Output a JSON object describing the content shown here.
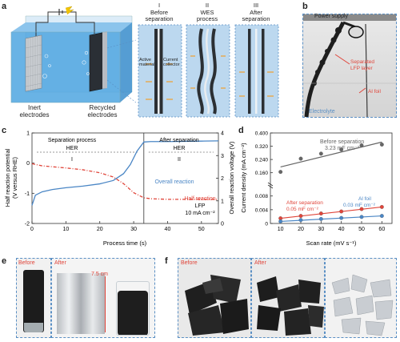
{
  "panel_a": {
    "label": "a",
    "inert_caption_1": "Inert",
    "inert_caption_2": "electrodes",
    "recycled_caption_1": "Recycled",
    "recycled_caption_2": "electrodes",
    "stage1_num": "I",
    "stage1_title_1": "Before",
    "stage1_title_2": "separation",
    "stage2_num": "II",
    "stage2_title_1": "WES",
    "stage2_title_2": "process",
    "stage3_num": "III",
    "stage3_title_1": "After",
    "stage3_title_2": "separation",
    "active_label_1": "Active",
    "active_label_2": "material",
    "collector_label_1": "Current",
    "collector_label_2": "collector"
  },
  "panel_b": {
    "label": "b",
    "power_supply": "Power supply",
    "lfp_1": "Separated",
    "lfp_2": "LFP layer",
    "al_foil": "Al foil",
    "electrolyte": "Electrolyte"
  },
  "panel_c": {
    "label": "c",
    "sep_process": "Separation process",
    "sep_her": "HER",
    "after_sep": "After separation",
    "after_her": "HER",
    "region1": "I",
    "region2": "II",
    "overall_label": "Overall reaction",
    "half_label": "Half reaction",
    "lfp_label": "LFP",
    "current_label": "10 mA cm⁻²",
    "ylabel_left_1": "Half reaction potential",
    "ylabel_left_2": "(V versus RHE)",
    "ylabel_right": "Overall reaction voltage (V)",
    "xlabel": "Process time (s)"
  },
  "panel_d": {
    "label": "d",
    "before_1": "Before separation",
    "before_2": "3.23 mF cm⁻²",
    "after_1": "After separation",
    "after_2": "0.05 mF cm⁻²",
    "al_1": "Al foil",
    "al_2": "0.03 mF cm⁻²",
    "ylabel": "Current density (mA cm⁻²)",
    "xlabel": "Scan rate (mV s⁻¹)"
  },
  "panel_e": {
    "label": "e",
    "before": "Before",
    "after": "After",
    "size": "7.5 cm"
  },
  "panel_f": {
    "label": "f",
    "before": "Before",
    "after": "After"
  },
  "colors": {
    "overall": "#4a86c5",
    "half": "#e0453a",
    "before_sep": "#666666",
    "after_sep": "#e0453a",
    "al_foil": "#4a86c5",
    "accent_dash": "#5a8fc4",
    "stage_bg": "#b9d6ee"
  },
  "chart_data": [
    {
      "type": "line",
      "xlim": [
        0,
        55
      ],
      "xticks": [
        0,
        10,
        20,
        30,
        40,
        50
      ],
      "ylim_left": [
        -2,
        1
      ],
      "yticks_left": [
        -2,
        -1,
        0,
        1
      ],
      "ylim_right": [
        0,
        4
      ],
      "yticks_right": [
        0,
        1,
        2,
        3,
        4
      ],
      "separator_x": 33,
      "series": [
        {
          "name": "Overall reaction",
          "axis": "right",
          "x": [
            0,
            1,
            3,
            6,
            10,
            15,
            20,
            24,
            27,
            29,
            31,
            33,
            35,
            40,
            45,
            50,
            55
          ],
          "y": [
            0.8,
            1.25,
            1.4,
            1.5,
            1.58,
            1.65,
            1.75,
            1.9,
            2.2,
            2.6,
            3.2,
            3.6,
            3.62,
            3.62,
            3.63,
            3.64,
            3.65
          ]
        },
        {
          "name": "Half reaction",
          "axis": "left",
          "x": [
            0,
            3,
            6,
            10,
            15,
            20,
            24,
            27,
            30,
            33,
            35,
            40,
            45,
            50,
            55
          ],
          "y": [
            -0.02,
            -0.09,
            -0.12,
            -0.16,
            -0.22,
            -0.32,
            -0.46,
            -0.68,
            -0.98,
            -1.15,
            -1.18,
            -1.2,
            -1.2,
            -1.2,
            -1.2
          ]
        }
      ]
    },
    {
      "type": "scatter",
      "x": [
        10,
        20,
        30,
        40,
        50,
        60
      ],
      "xlim": [
        5,
        65
      ],
      "xticks": [
        10,
        20,
        30,
        40,
        50,
        60
      ],
      "upper_ylim": [
        0.11,
        0.4
      ],
      "upper_yticks": [
        0.16,
        0.24,
        0.32,
        0.4
      ],
      "lower_ylim": [
        0,
        0.0105
      ],
      "lower_yticks": [
        0,
        0.004,
        0.008
      ],
      "series": [
        {
          "name": "Before separation",
          "y": [
            0.165,
            0.245,
            0.275,
            0.3,
            0.325,
            0.33
          ],
          "fit": [
            0.195,
            0.345
          ]
        },
        {
          "name": "After separation",
          "y": [
            0.0015,
            0.0022,
            0.0029,
            0.0035,
            0.0042,
            0.0048
          ],
          "fit": [
            0.0015,
            0.0048
          ]
        },
        {
          "name": "Al foil",
          "y": [
            0.0006,
            0.001,
            0.0013,
            0.0016,
            0.0019,
            0.0022
          ],
          "fit": [
            0.0006,
            0.0022
          ]
        }
      ]
    }
  ]
}
